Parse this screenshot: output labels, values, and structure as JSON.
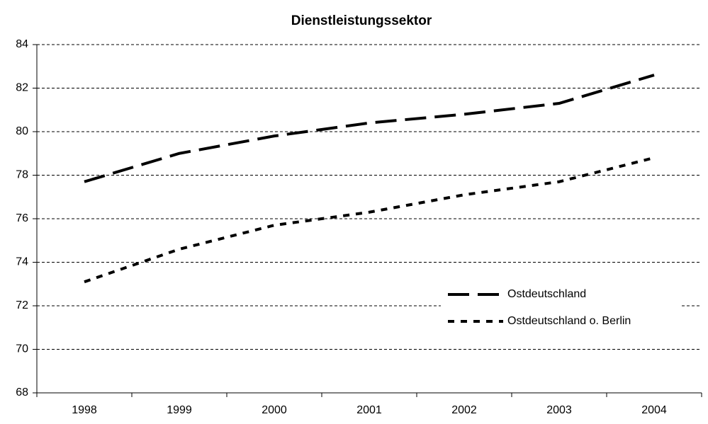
{
  "chart_data": {
    "type": "line",
    "title": "Dienstleistungssektor",
    "categories": [
      "1998",
      "1999",
      "2000",
      "2001",
      "2002",
      "2003",
      "2004"
    ],
    "series": [
      {
        "name": "Ostdeutschland",
        "color": "#000000",
        "line_style": "dashed",
        "values": [
          77.7,
          79.0,
          79.8,
          80.4,
          80.8,
          81.3,
          82.6
        ]
      },
      {
        "name": "Ostdeutschland o. Berlin",
        "color": "#000000",
        "line_style": "dotted",
        "values": [
          73.1,
          74.6,
          75.7,
          76.3,
          77.1,
          77.7,
          78.8
        ]
      }
    ],
    "ylim": [
      68,
      84
    ],
    "yticks": [
      68,
      70,
      72,
      74,
      76,
      78,
      80,
      82,
      84
    ],
    "grid": true,
    "legend": "lower right"
  }
}
